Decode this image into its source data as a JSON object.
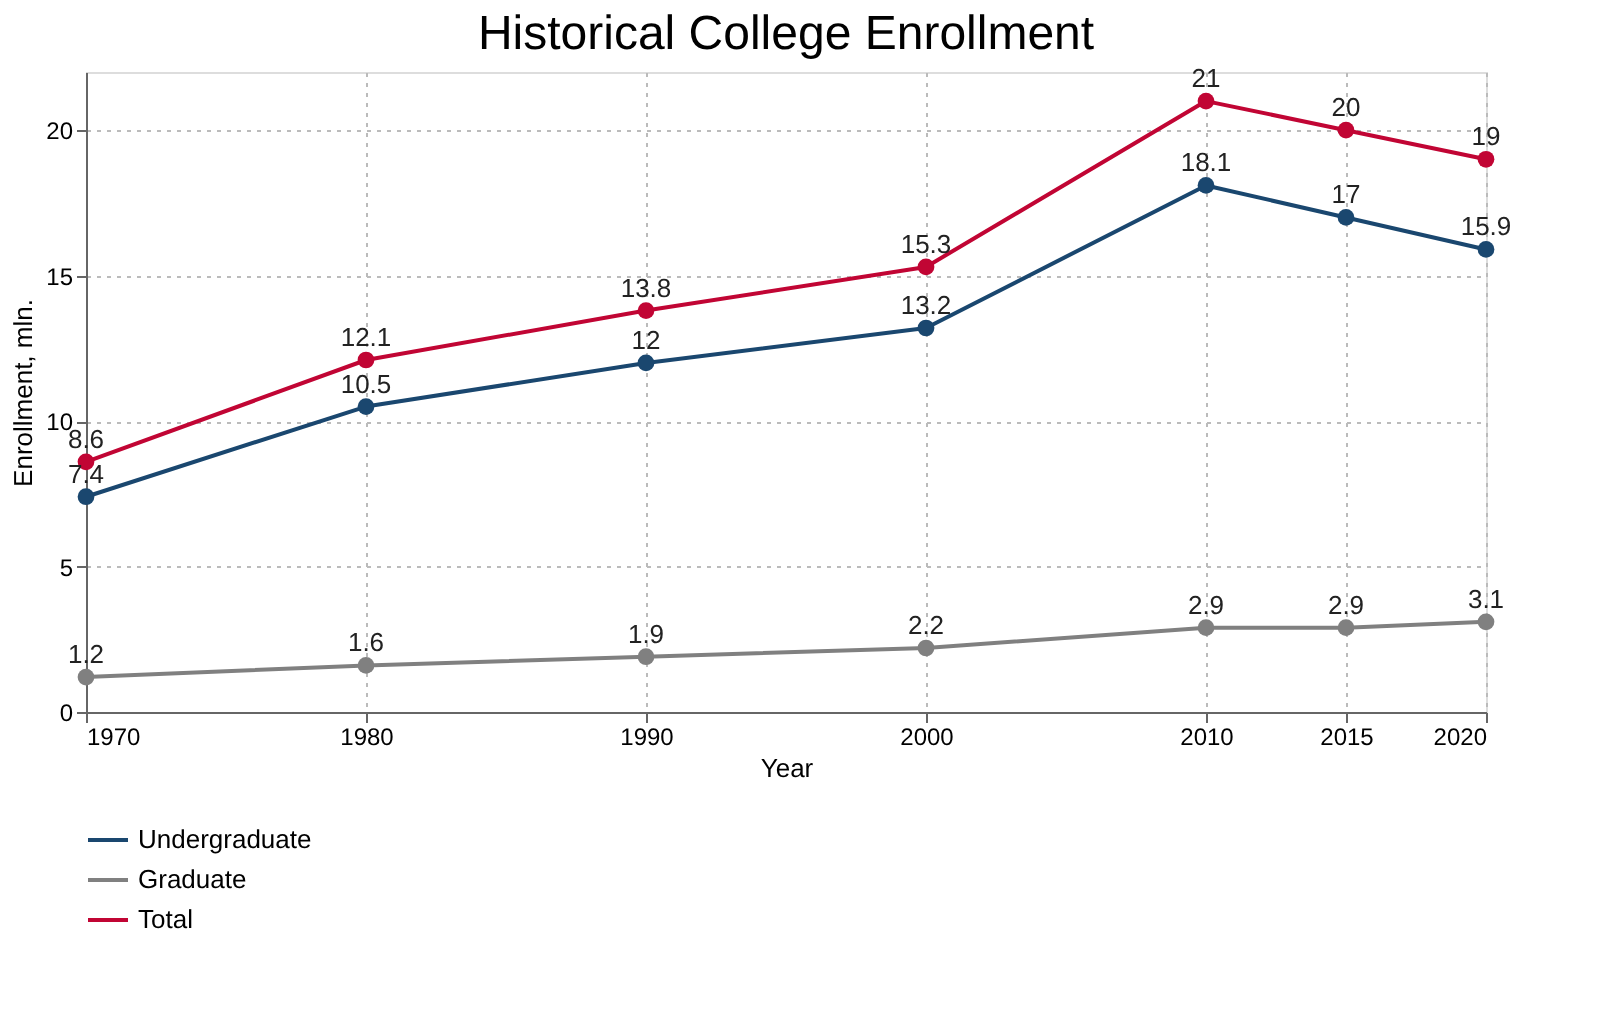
{
  "chart_data": {
    "type": "line",
    "title": "Historical College Enrollment",
    "xlabel": "Year",
    "ylabel": "Enrollment, mln.",
    "x": [
      1970,
      1980,
      1990,
      2000,
      2010,
      2015,
      2020
    ],
    "series": [
      {
        "name": "Undergraduate",
        "color": "#1a476f",
        "values": [
          7.4,
          10.5,
          12,
          13.2,
          18.1,
          17,
          15.9
        ]
      },
      {
        "name": "Graduate",
        "color": "#808080",
        "values": [
          1.2,
          1.6,
          1.9,
          2.2,
          2.9,
          2.9,
          3.1
        ]
      },
      {
        "name": "Total",
        "color": "#c10534",
        "values": [
          8.6,
          12.1,
          13.8,
          15.3,
          21,
          20,
          19
        ]
      }
    ],
    "xlim": [
      1970,
      2020
    ],
    "xticks": [
      1970,
      1980,
      1990,
      2000,
      2010,
      2015,
      2020
    ],
    "ylim": [
      0,
      22
    ],
    "yticks": [
      0,
      5,
      10,
      15,
      20
    ],
    "grid": true,
    "legend": "bottom",
    "marker": "circle",
    "line_style": "solid",
    "data_labels": true
  }
}
